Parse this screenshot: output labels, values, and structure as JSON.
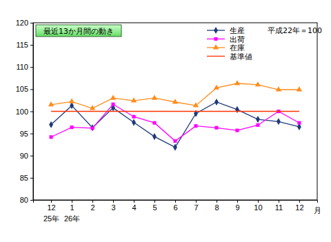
{
  "chart_data": {
    "type": "line",
    "title": "最近13か月間の動き",
    "subtitle": "平成22年＝100",
    "x_label": "月",
    "categories": [
      "12\n25年",
      "1\n26年",
      "2",
      "3",
      "4",
      "5",
      "6",
      "7",
      "8",
      "9",
      "10",
      "11",
      "12"
    ],
    "series": [
      {
        "name": "生産",
        "color": "#1f3a7a",
        "marker": "diamond",
        "values": [
          97.0,
          101.3,
          96.3,
          100.8,
          97.5,
          94.3,
          91.9,
          99.5,
          102.1,
          100.4,
          98.2,
          97.7,
          96.5
        ]
      },
      {
        "name": "出荷",
        "color": "#ff00ff",
        "marker": "square",
        "values": [
          94.2,
          96.4,
          96.2,
          101.6,
          98.8,
          97.4,
          93.3,
          96.7,
          96.3,
          95.7,
          96.9,
          100.0,
          97.4
        ]
      },
      {
        "name": "在庫",
        "color": "#ff8c1a",
        "marker": "triangle",
        "values": [
          101.5,
          102.2,
          100.7,
          103.0,
          102.4,
          103.0,
          102.1,
          101.3,
          105.3,
          106.3,
          106.0,
          104.9,
          104.9
        ]
      },
      {
        "name": "基準値",
        "color": "#ff3300",
        "marker": "none",
        "values": [
          100,
          100,
          100,
          100,
          100,
          100,
          100,
          100,
          100,
          100,
          100,
          100,
          100
        ]
      }
    ],
    "ylim": [
      80,
      120
    ],
    "yticks": [
      80,
      85,
      90,
      95,
      100,
      105,
      110,
      115,
      120
    ],
    "grid": false,
    "legend": "upper right"
  }
}
